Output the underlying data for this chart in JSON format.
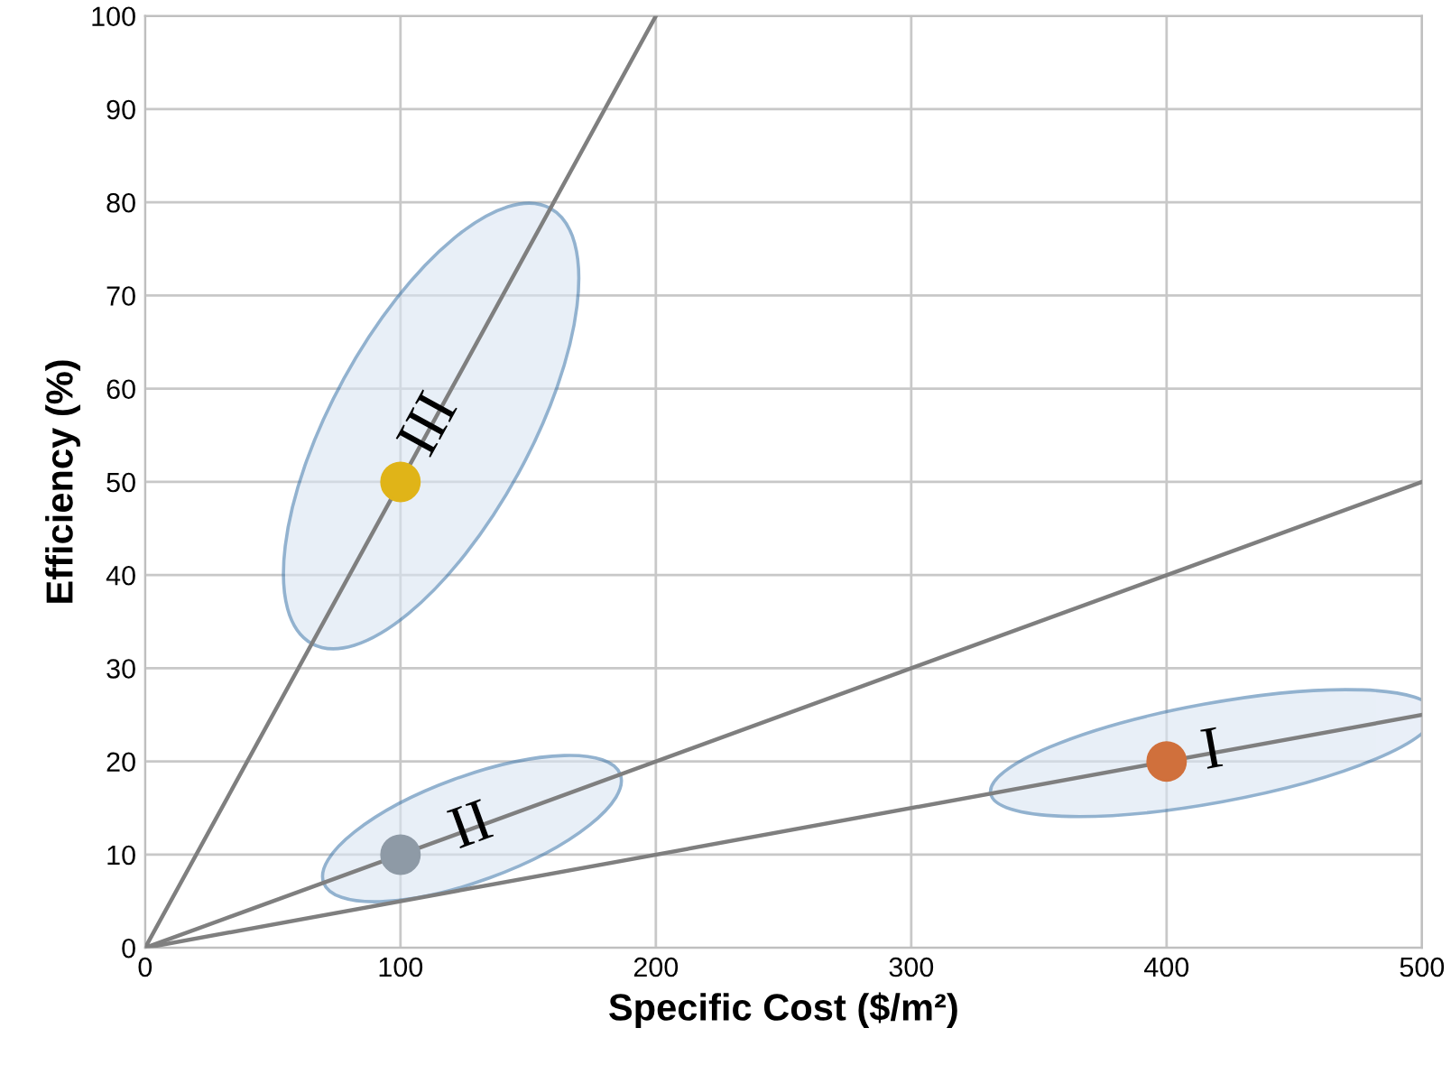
{
  "chart_data": {
    "type": "line",
    "xlabel": "Specific Cost ($/m²)",
    "ylabel": "Efficiency (%)",
    "xlim": [
      0,
      500
    ],
    "xticks": [
      0,
      100,
      200,
      300,
      400,
      500
    ],
    "ylim": [
      0,
      100
    ],
    "yticks": [
      0,
      10,
      20,
      30,
      40,
      50,
      60,
      70,
      80,
      90,
      100
    ],
    "grid": true,
    "legend": false,
    "series": [
      {
        "color": "#7f7f7f",
        "x": [
          0,
          200
        ],
        "values": [
          0,
          100
        ]
      },
      {
        "color": "#7f7f7f",
        "x": [
          0,
          500
        ],
        "values": [
          0,
          50
        ]
      },
      {
        "color": "#7f7f7f",
        "x": [
          0,
          500
        ],
        "values": [
          0,
          25
        ]
      },
      {
        "type": "scatter",
        "color": "#d0703c",
        "x": [
          400
        ],
        "values": [
          20
        ],
        "marker": "circle"
      },
      {
        "type": "scatter",
        "color": "#8e9aa6",
        "x": [
          100
        ],
        "values": [
          10
        ],
        "marker": "circle"
      },
      {
        "type": "scatter",
        "color": "#e0b418",
        "x": [
          100
        ],
        "values": [
          50
        ],
        "marker": "circle"
      }
    ],
    "annotations": [
      {
        "text": "III",
        "x": 112,
        "y": 56
      },
      {
        "text": "II",
        "x": 128,
        "y": 12.8
      },
      {
        "text": "I",
        "x": 418,
        "y": 20.9
      }
    ]
  }
}
